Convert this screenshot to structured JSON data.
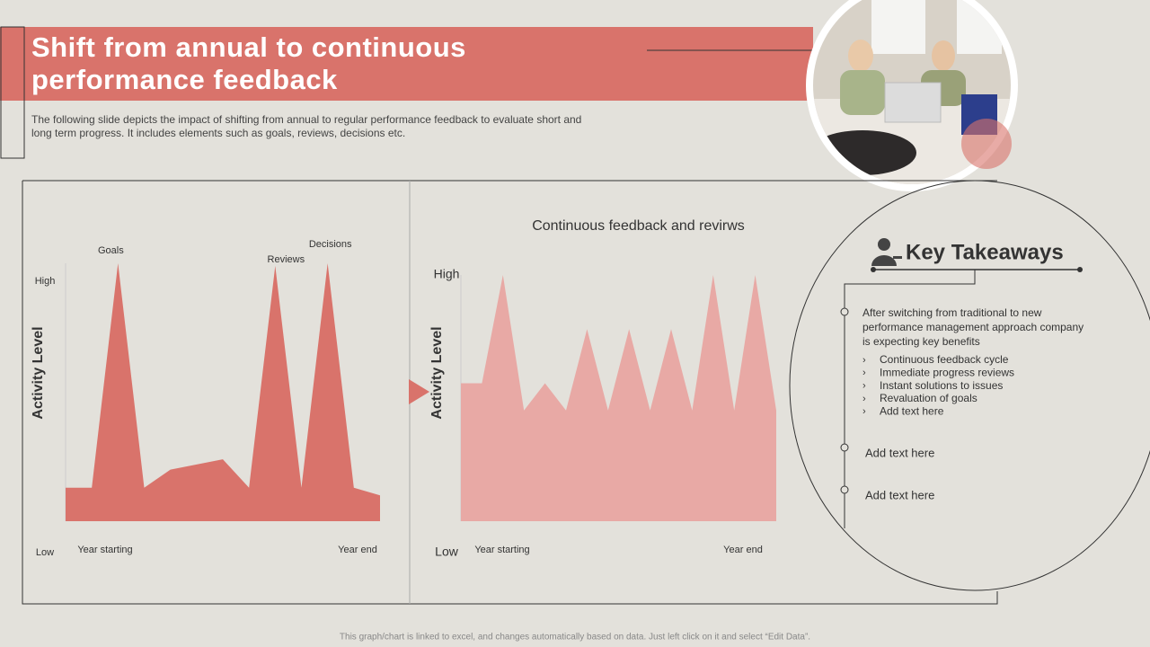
{
  "header": {
    "title_lines": [
      "Shift from annual to continuous",
      "performance feedback"
    ],
    "description_lines": [
      "The following slide depicts the impact of shifting from annual to regular performance feedback to evaluate short and",
      "long term progress. It includes elements such as goals, reviews, decisions etc."
    ]
  },
  "chart_data": [
    {
      "type": "area",
      "color": "#d9736b",
      "y_label": "Activity Level",
      "ylim": [
        0,
        100
      ],
      "yticks": [
        {
          "value": 0,
          "label": "Low"
        },
        {
          "value": 93,
          "label": "High"
        }
      ],
      "x_labels": [
        "Year starting",
        "Year end"
      ],
      "values": [
        13,
        13,
        100,
        13,
        20,
        22,
        24,
        13,
        99,
        13,
        100,
        13,
        10
      ],
      "annotations": [
        {
          "text": "Goals",
          "index": 2
        },
        {
          "text": "Reviews",
          "index": 8
        },
        {
          "text": "Decisions",
          "index": 10
        }
      ]
    },
    {
      "type": "area",
      "title": "Continuous feedback and revirws",
      "color": "#e8a9a5",
      "y_label": "Activity Level",
      "ylim": [
        0,
        100
      ],
      "yticks": [
        {
          "value": 0,
          "label": "Low"
        },
        {
          "value": 100,
          "label": "High"
        }
      ],
      "x_labels": [
        "Year starting",
        "Year end"
      ],
      "values": [
        56,
        56,
        100,
        45,
        56,
        45,
        78,
        45,
        78,
        45,
        78,
        45,
        100,
        45,
        100,
        45
      ]
    }
  ],
  "takeaways": {
    "heading": "Key Takeaways",
    "intro_lines": [
      "After switching from traditional to new",
      "performance management approach company",
      "is expecting key benefits"
    ],
    "bullets": [
      "Continuous feedback cycle",
      "Immediate progress reviews",
      "Instant solutions to issues",
      "Revaluation of goals",
      "Add text here"
    ],
    "items": [
      "Add text here",
      "Add text here"
    ]
  },
  "footer": "This graph/chart is linked to excel, and changes automatically based on data. Just left click on it and select “Edit Data”."
}
